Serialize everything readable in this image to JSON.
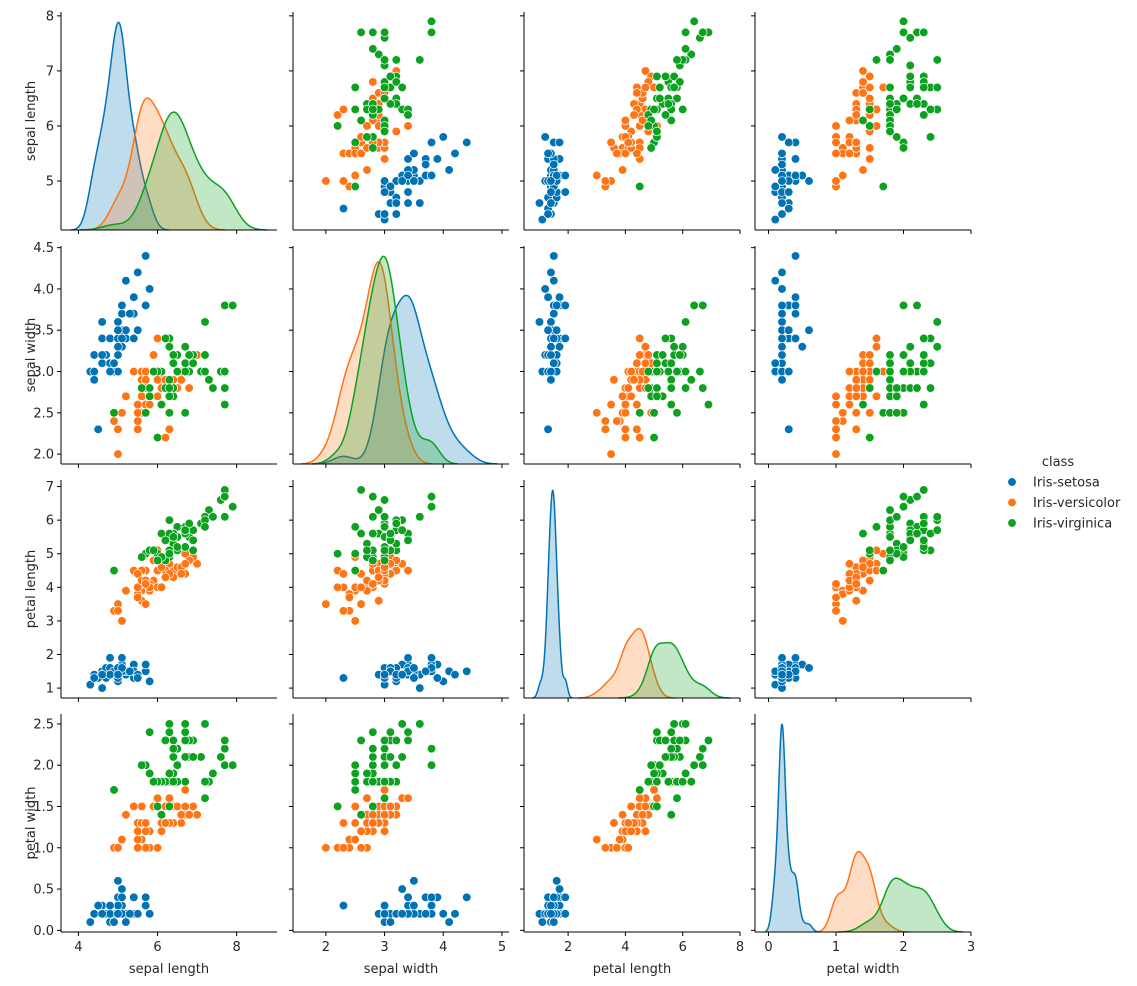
{
  "chart_data": {
    "type": "pairplot",
    "diag_kind": "kde",
    "offdiag_kind": "scatter",
    "grid": false,
    "legend": {
      "title": "class",
      "placement": "right"
    },
    "variables": [
      {
        "name": "sepal length",
        "xlim": [
          3.56,
          9.02
        ],
        "ylim": [
          4.11,
          8.07
        ],
        "xticks": [
          4,
          6,
          8
        ],
        "yticks": [
          5,
          6,
          7,
          8
        ],
        "xtick_labels": [
          "4",
          "6",
          "8"
        ],
        "ytick_labels": [
          "5",
          "6",
          "7",
          "8"
        ]
      },
      {
        "name": "sepal width",
        "xlim": [
          1.44,
          5.12
        ],
        "ylim": [
          1.88,
          4.52
        ],
        "xticks": [
          2,
          3,
          4,
          5
        ],
        "yticks": [
          2.0,
          2.5,
          3.0,
          3.5,
          4.0,
          4.5
        ],
        "xtick_labels": [
          "2",
          "3",
          "4",
          "5"
        ],
        "ytick_labels": [
          "2.0",
          "2.5",
          "3.0",
          "3.5",
          "4.0",
          "4.5"
        ]
      },
      {
        "name": "petal length",
        "xlim": [
          0.46,
          8.0
        ],
        "ylim": [
          0.705,
          7.195
        ],
        "xticks": [
          2,
          4,
          6,
          8
        ],
        "yticks": [
          1,
          2,
          3,
          4,
          5,
          6,
          7
        ],
        "xtick_labels": [
          "2",
          "4",
          "6",
          "8"
        ],
        "ytick_labels": [
          "1",
          "2",
          "3",
          "4",
          "5",
          "6",
          "7"
        ]
      },
      {
        "name": "petal width",
        "xlim": [
          -0.2,
          3.0
        ],
        "ylim": [
          -0.02,
          2.62
        ],
        "xticks": [
          0,
          1,
          2,
          3
        ],
        "yticks": [
          0.0,
          0.5,
          1.0,
          1.5,
          2.0,
          2.5
        ],
        "xtick_labels": [
          "0",
          "1",
          "2",
          "3"
        ],
        "ytick_labels": [
          "0.0",
          "0.5",
          "1.0",
          "1.5",
          "2.0",
          "2.5"
        ]
      }
    ],
    "series": [
      {
        "name": "Iris-setosa",
        "color": "#0173b5",
        "rows": [
          [
            5.1,
            3.5,
            1.4,
            0.2
          ],
          [
            4.9,
            3.0,
            1.4,
            0.2
          ],
          [
            4.7,
            3.2,
            1.3,
            0.2
          ],
          [
            4.6,
            3.1,
            1.5,
            0.2
          ],
          [
            5.0,
            3.6,
            1.4,
            0.2
          ],
          [
            5.4,
            3.9,
            1.7,
            0.4
          ],
          [
            4.6,
            3.4,
            1.4,
            0.3
          ],
          [
            5.0,
            3.4,
            1.5,
            0.2
          ],
          [
            4.4,
            2.9,
            1.4,
            0.2
          ],
          [
            4.9,
            3.1,
            1.5,
            0.1
          ],
          [
            5.4,
            3.7,
            1.5,
            0.2
          ],
          [
            4.8,
            3.4,
            1.6,
            0.2
          ],
          [
            4.8,
            3.0,
            1.4,
            0.1
          ],
          [
            4.3,
            3.0,
            1.1,
            0.1
          ],
          [
            5.8,
            4.0,
            1.2,
            0.2
          ],
          [
            5.7,
            4.4,
            1.5,
            0.4
          ],
          [
            5.4,
            3.9,
            1.3,
            0.4
          ],
          [
            5.1,
            3.5,
            1.4,
            0.3
          ],
          [
            5.7,
            3.8,
            1.7,
            0.3
          ],
          [
            5.1,
            3.8,
            1.5,
            0.3
          ],
          [
            5.4,
            3.4,
            1.7,
            0.2
          ],
          [
            5.1,
            3.7,
            1.5,
            0.4
          ],
          [
            4.6,
            3.6,
            1.0,
            0.2
          ],
          [
            5.1,
            3.3,
            1.7,
            0.5
          ],
          [
            4.8,
            3.4,
            1.9,
            0.2
          ],
          [
            5.0,
            3.0,
            1.6,
            0.2
          ],
          [
            5.0,
            3.4,
            1.6,
            0.4
          ],
          [
            5.2,
            3.5,
            1.5,
            0.2
          ],
          [
            5.2,
            3.4,
            1.4,
            0.2
          ],
          [
            4.7,
            3.2,
            1.6,
            0.2
          ],
          [
            4.8,
            3.1,
            1.6,
            0.2
          ],
          [
            5.4,
            3.4,
            1.5,
            0.4
          ],
          [
            5.2,
            4.1,
            1.5,
            0.1
          ],
          [
            5.5,
            4.2,
            1.4,
            0.2
          ],
          [
            4.9,
            3.1,
            1.5,
            0.1
          ],
          [
            5.0,
            3.2,
            1.2,
            0.2
          ],
          [
            5.5,
            3.5,
            1.3,
            0.2
          ],
          [
            4.9,
            3.1,
            1.5,
            0.1
          ],
          [
            4.4,
            3.0,
            1.3,
            0.2
          ],
          [
            5.1,
            3.4,
            1.5,
            0.2
          ],
          [
            5.0,
            3.5,
            1.3,
            0.3
          ],
          [
            4.5,
            2.3,
            1.3,
            0.3
          ],
          [
            4.4,
            3.2,
            1.3,
            0.2
          ],
          [
            5.0,
            3.5,
            1.6,
            0.6
          ],
          [
            5.1,
            3.8,
            1.9,
            0.4
          ],
          [
            4.8,
            3.0,
            1.4,
            0.3
          ],
          [
            5.1,
            3.8,
            1.6,
            0.2
          ],
          [
            4.6,
            3.2,
            1.4,
            0.2
          ],
          [
            5.3,
            3.7,
            1.5,
            0.2
          ],
          [
            5.0,
            3.3,
            1.4,
            0.2
          ]
        ]
      },
      {
        "name": "Iris-versicolor",
        "color": "#ff7414",
        "rows": [
          [
            7.0,
            3.2,
            4.7,
            1.4
          ],
          [
            6.4,
            3.2,
            4.5,
            1.5
          ],
          [
            6.9,
            3.1,
            4.9,
            1.5
          ],
          [
            5.5,
            2.3,
            4.0,
            1.3
          ],
          [
            6.5,
            2.8,
            4.6,
            1.5
          ],
          [
            5.7,
            2.8,
            4.5,
            1.3
          ],
          [
            6.3,
            3.3,
            4.7,
            1.6
          ],
          [
            4.9,
            2.4,
            3.3,
            1.0
          ],
          [
            6.6,
            2.9,
            4.6,
            1.3
          ],
          [
            5.2,
            2.7,
            3.9,
            1.4
          ],
          [
            5.0,
            2.0,
            3.5,
            1.0
          ],
          [
            5.9,
            3.0,
            4.2,
            1.5
          ],
          [
            6.0,
            2.2,
            4.0,
            1.0
          ],
          [
            6.1,
            2.9,
            4.7,
            1.4
          ],
          [
            5.6,
            2.9,
            3.6,
            1.3
          ],
          [
            6.7,
            3.1,
            4.4,
            1.4
          ],
          [
            5.6,
            3.0,
            4.5,
            1.5
          ],
          [
            5.8,
            2.7,
            4.1,
            1.0
          ],
          [
            6.2,
            2.2,
            4.5,
            1.5
          ],
          [
            5.6,
            2.5,
            3.9,
            1.1
          ],
          [
            5.9,
            3.2,
            4.8,
            1.8
          ],
          [
            6.1,
            2.8,
            4.0,
            1.3
          ],
          [
            6.3,
            2.5,
            4.9,
            1.5
          ],
          [
            6.1,
            2.8,
            4.7,
            1.2
          ],
          [
            6.4,
            2.9,
            4.3,
            1.3
          ],
          [
            6.6,
            3.0,
            4.4,
            1.4
          ],
          [
            6.8,
            2.8,
            4.8,
            1.4
          ],
          [
            6.7,
            3.0,
            5.0,
            1.7
          ],
          [
            6.0,
            2.9,
            4.5,
            1.5
          ],
          [
            5.7,
            2.6,
            3.5,
            1.0
          ],
          [
            5.5,
            2.4,
            3.8,
            1.1
          ],
          [
            5.5,
            2.4,
            3.7,
            1.0
          ],
          [
            5.8,
            2.7,
            3.9,
            1.2
          ],
          [
            6.0,
            2.7,
            5.1,
            1.6
          ],
          [
            5.4,
            3.0,
            4.5,
            1.5
          ],
          [
            6.0,
            3.4,
            4.5,
            1.6
          ],
          [
            6.7,
            3.1,
            4.7,
            1.5
          ],
          [
            6.3,
            2.3,
            4.4,
            1.3
          ],
          [
            5.6,
            3.0,
            4.1,
            1.3
          ],
          [
            5.5,
            2.5,
            4.0,
            1.3
          ],
          [
            5.5,
            2.6,
            4.4,
            1.2
          ],
          [
            6.1,
            3.0,
            4.6,
            1.4
          ],
          [
            5.8,
            2.6,
            4.0,
            1.2
          ],
          [
            5.0,
            2.3,
            3.3,
            1.0
          ],
          [
            5.6,
            2.7,
            4.2,
            1.3
          ],
          [
            5.7,
            3.0,
            4.2,
            1.2
          ],
          [
            5.7,
            2.9,
            4.2,
            1.3
          ],
          [
            6.2,
            2.9,
            4.3,
            1.3
          ],
          [
            5.1,
            2.5,
            3.0,
            1.1
          ],
          [
            5.7,
            2.8,
            4.1,
            1.3
          ]
        ]
      },
      {
        "name": "Iris-virginica",
        "color": "#0ca11e",
        "rows": [
          [
            6.3,
            3.3,
            6.0,
            2.5
          ],
          [
            5.8,
            2.7,
            5.1,
            1.9
          ],
          [
            7.1,
            3.0,
            5.9,
            2.1
          ],
          [
            6.3,
            2.9,
            5.6,
            1.8
          ],
          [
            6.5,
            3.0,
            5.8,
            2.2
          ],
          [
            7.6,
            3.0,
            6.6,
            2.1
          ],
          [
            4.9,
            2.5,
            4.5,
            1.7
          ],
          [
            7.3,
            2.9,
            6.3,
            1.8
          ],
          [
            6.7,
            2.5,
            5.8,
            1.8
          ],
          [
            7.2,
            3.6,
            6.1,
            2.5
          ],
          [
            6.5,
            3.2,
            5.1,
            2.0
          ],
          [
            6.4,
            2.7,
            5.3,
            1.9
          ],
          [
            6.8,
            3.0,
            5.5,
            2.1
          ],
          [
            5.7,
            2.5,
            5.0,
            2.0
          ],
          [
            5.8,
            2.8,
            5.1,
            2.4
          ],
          [
            6.4,
            3.2,
            5.3,
            2.3
          ],
          [
            6.5,
            3.0,
            5.5,
            1.8
          ],
          [
            7.7,
            3.8,
            6.7,
            2.2
          ],
          [
            7.7,
            2.6,
            6.9,
            2.3
          ],
          [
            6.0,
            2.2,
            5.0,
            1.5
          ],
          [
            6.9,
            3.2,
            5.7,
            2.3
          ],
          [
            5.6,
            2.8,
            4.9,
            2.0
          ],
          [
            7.7,
            2.8,
            6.7,
            2.0
          ],
          [
            6.3,
            2.7,
            4.9,
            1.8
          ],
          [
            6.7,
            3.3,
            5.7,
            2.1
          ],
          [
            7.2,
            3.2,
            6.0,
            1.8
          ],
          [
            6.2,
            2.8,
            4.8,
            1.8
          ],
          [
            6.1,
            3.0,
            4.9,
            1.8
          ],
          [
            6.4,
            2.8,
            5.6,
            2.1
          ],
          [
            7.2,
            3.0,
            5.8,
            1.6
          ],
          [
            7.4,
            2.8,
            6.1,
            1.9
          ],
          [
            7.9,
            3.8,
            6.4,
            2.0
          ],
          [
            6.4,
            2.8,
            5.6,
            2.2
          ],
          [
            6.3,
            2.8,
            5.1,
            1.5
          ],
          [
            6.1,
            2.6,
            5.6,
            1.4
          ],
          [
            7.7,
            3.0,
            6.1,
            2.3
          ],
          [
            6.3,
            3.4,
            5.6,
            2.4
          ],
          [
            6.4,
            3.1,
            5.5,
            1.8
          ],
          [
            6.0,
            3.0,
            4.8,
            1.8
          ],
          [
            6.9,
            3.1,
            5.4,
            2.1
          ],
          [
            6.7,
            3.1,
            5.6,
            2.4
          ],
          [
            6.9,
            3.1,
            5.1,
            2.3
          ],
          [
            5.8,
            2.7,
            5.1,
            1.9
          ],
          [
            6.8,
            3.2,
            5.9,
            2.3
          ],
          [
            6.7,
            3.3,
            5.7,
            2.5
          ],
          [
            6.7,
            3.0,
            5.2,
            2.3
          ],
          [
            6.3,
            2.5,
            5.0,
            1.9
          ],
          [
            6.5,
            3.0,
            5.2,
            2.0
          ],
          [
            6.2,
            3.4,
            5.4,
            2.3
          ],
          [
            5.9,
            3.0,
            5.1,
            1.8
          ]
        ]
      }
    ]
  }
}
